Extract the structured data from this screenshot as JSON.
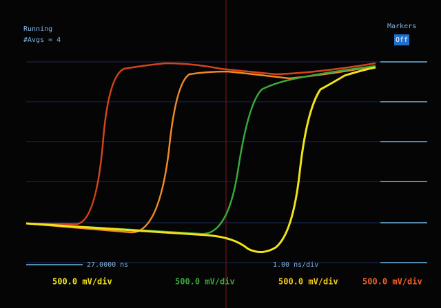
{
  "status": {
    "run": "Running",
    "averages": "#Avgs = 4"
  },
  "markers": {
    "label": "Markers",
    "state": "Off"
  },
  "timebase": {
    "position": "27.0000 ns",
    "scale": "1.00 ns/div"
  },
  "channels": [
    {
      "scale": "500.0 mV/div"
    },
    {
      "scale": "500.0 mV/div"
    },
    {
      "scale": "500.0 mV/div"
    },
    {
      "scale": "500.0 mV/div"
    }
  ]
}
